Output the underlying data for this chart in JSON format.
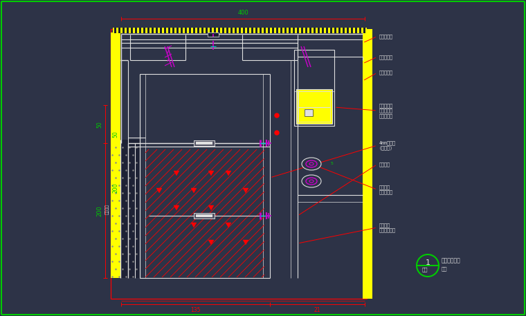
{
  "bg_color": "#2d3347",
  "green": "#00cc00",
  "red": "#ff0000",
  "yellow": "#ffff00",
  "white": "#e0e0e0",
  "cyan": "#00cccc",
  "magenta": "#cc00cc",
  "dark_bg": "#1a1f2e",
  "labels_right": [
    "铝板封闭板",
    "青铜处理件",
    "不锈钢衬板",
    "铝型材立柱\n铝型材横档\n不锈钢螺栓",
    "4mm石材板\n(或铝板)",
    "连接件件",
    "铝板饰板\n不锈钢螺丝",
    "接地扁钢\n与钢结构连接"
  ],
  "dim_top": "400",
  "dim_left": "200",
  "dim_left2": "50",
  "dim_bottom_left": "135",
  "dim_bottom_right": "21"
}
